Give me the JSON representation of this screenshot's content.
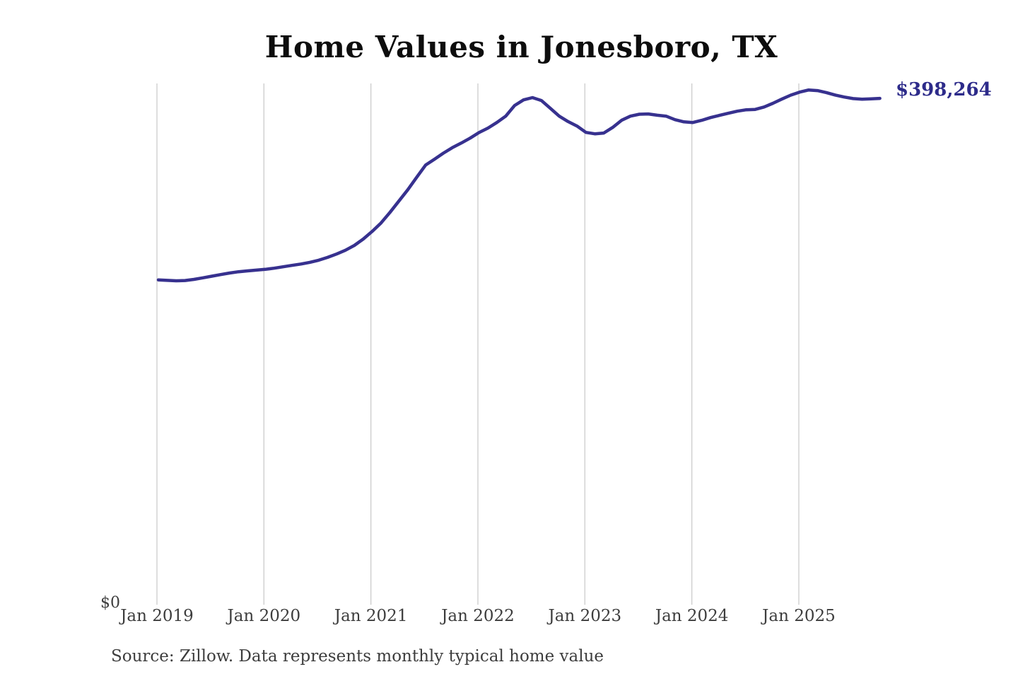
{
  "chart_data": {
    "type": "line",
    "title": "Home Values in Jonesboro, TX",
    "end_label": "$398,264",
    "final_value": 398264,
    "source_note": "Source: Zillow. Data represents monthly typical home value",
    "x_tick_labels": [
      "Jan 2019",
      "Jan 2020",
      "Jan 2021",
      "Jan 2022",
      "Jan 2023",
      "Jan 2024",
      "Jan 2025"
    ],
    "y_tick_labels": [
      "$0"
    ],
    "ylim": [
      0,
      410000
    ],
    "grid": "vertical-only",
    "legend": "none",
    "line_color": "#37318f",
    "gridline_color": "#cccccc",
    "label_color": "#2d2b8a",
    "x": [
      "2019-01",
      "2019-02",
      "2019-03",
      "2019-04",
      "2019-05",
      "2019-06",
      "2019-07",
      "2019-08",
      "2019-09",
      "2019-10",
      "2019-11",
      "2019-12",
      "2020-01",
      "2020-02",
      "2020-03",
      "2020-04",
      "2020-05",
      "2020-06",
      "2020-07",
      "2020-08",
      "2020-09",
      "2020-10",
      "2020-11",
      "2020-12",
      "2021-01",
      "2021-02",
      "2021-03",
      "2021-04",
      "2021-05",
      "2021-06",
      "2021-07",
      "2021-08",
      "2021-09",
      "2021-10",
      "2021-11",
      "2021-12",
      "2022-01",
      "2022-02",
      "2022-03",
      "2022-04",
      "2022-05",
      "2022-06",
      "2022-07",
      "2022-08",
      "2022-09",
      "2022-10",
      "2022-11",
      "2022-12",
      "2023-01",
      "2023-02",
      "2023-03",
      "2023-04",
      "2023-05",
      "2023-06",
      "2023-07",
      "2023-08",
      "2023-09",
      "2023-10",
      "2023-11",
      "2023-12",
      "2024-01",
      "2024-02",
      "2024-03",
      "2024-04",
      "2024-05",
      "2024-06",
      "2024-07",
      "2024-08",
      "2024-09",
      "2024-10",
      "2024-11",
      "2024-12",
      "2025-01",
      "2025-02",
      "2025-03",
      "2025-04",
      "2025-05",
      "2025-06",
      "2025-07",
      "2025-08",
      "2025-09",
      "2025-10"
    ],
    "values": [
      255500,
      255100,
      254800,
      255000,
      255900,
      257100,
      258400,
      259700,
      260900,
      261900,
      262600,
      263200,
      263800,
      264700,
      265800,
      266900,
      268000,
      269300,
      271000,
      273200,
      275800,
      278800,
      282600,
      287600,
      293600,
      300300,
      308600,
      317500,
      326400,
      336200,
      345800,
      350400,
      355200,
      359500,
      363100,
      367000,
      371400,
      374900,
      379300,
      384300,
      392700,
      397100,
      398900,
      396600,
      390500,
      384300,
      380000,
      376500,
      371500,
      370400,
      371000,
      375400,
      381000,
      384300,
      385800,
      386000,
      385000,
      384300,
      381500,
      379800,
      379300,
      381000,
      383200,
      384900,
      386600,
      388200,
      389300,
      389600,
      391500,
      394400,
      397700,
      400800,
      403200,
      404900,
      404400,
      402800,
      400900,
      399300,
      398100,
      397600,
      397900,
      398264
    ]
  }
}
